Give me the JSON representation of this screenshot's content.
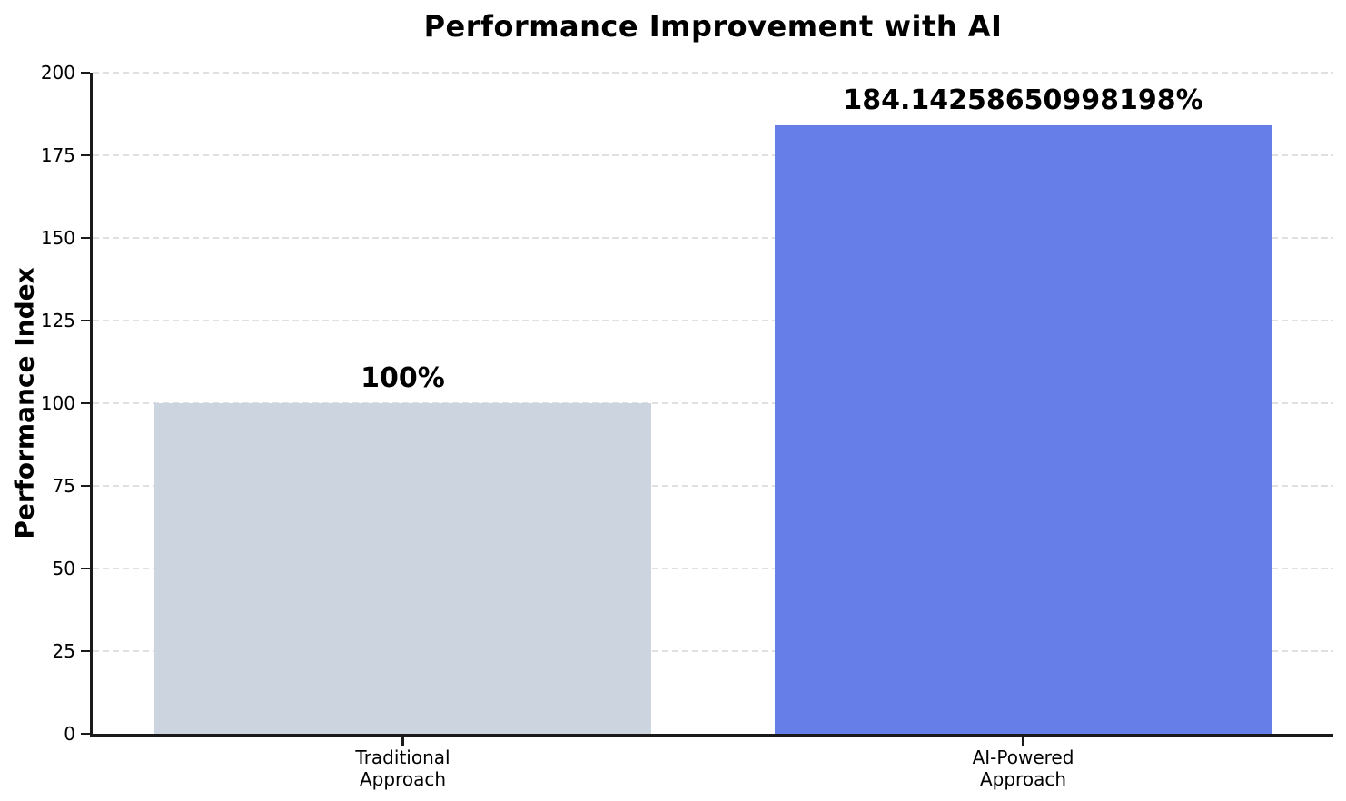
{
  "chart_data": {
    "type": "bar",
    "title": "Performance Improvement with AI",
    "categories": [
      "Traditional\nApproach",
      "AI-Powered\nApproach"
    ],
    "values": [
      100,
      184.14258650998198
    ],
    "bar_labels": [
      "100%",
      "184.14258650998198%"
    ],
    "bar_colors": [
      "#ccd5df",
      "#667ee8"
    ],
    "xlabel": "",
    "ylabel": "Performance Index",
    "ylim": [
      0,
      200
    ],
    "yticks": [
      0,
      25,
      50,
      75,
      100,
      125,
      150,
      175,
      200
    ],
    "grid": true,
    "grid_style": "dashed",
    "grid_color": "#e0e0e0",
    "spine_color": "#1a1a1a",
    "background_color": "#ffffff",
    "legend_position": "none"
  }
}
